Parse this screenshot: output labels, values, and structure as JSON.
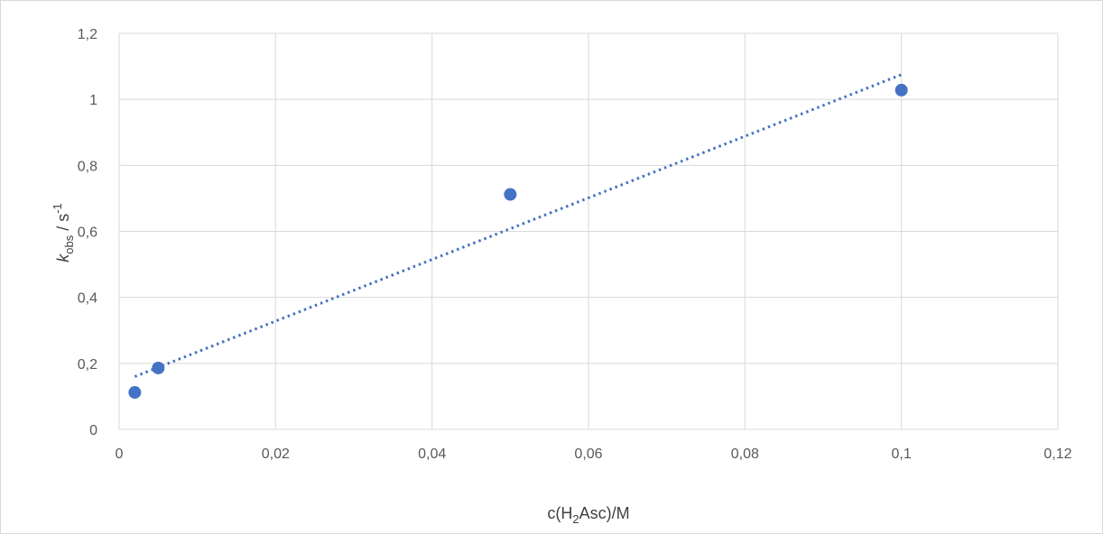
{
  "chart_data": {
    "type": "scatter",
    "x": [
      0.002,
      0.005,
      0.05,
      0.1
    ],
    "y": [
      0.112,
      0.186,
      0.712,
      1.028
    ],
    "trendline": {
      "type": "linear",
      "x": [
        0.002,
        0.1
      ],
      "y": [
        0.16,
        1.075
      ],
      "style": "dotted"
    },
    "xlim": [
      0,
      0.12
    ],
    "ylim": [
      0,
      1.2
    ],
    "x_ticks": [
      0,
      0.02,
      0.04,
      0.06,
      0.08,
      0.1,
      0.12
    ],
    "x_tick_labels": [
      "0",
      "0,02",
      "0,04",
      "0,06",
      "0,08",
      "0,1",
      "0,12"
    ],
    "y_ticks": [
      0,
      0.2,
      0.4,
      0.6,
      0.8,
      1,
      1.2
    ],
    "y_tick_labels": [
      "0",
      "0,2",
      "0,4",
      "0,6",
      "0,8",
      "1",
      "1,2"
    ],
    "xlabel": {
      "prefix": "c(H",
      "sub": "2",
      "suffix": "Asc)/M"
    },
    "ylabel": {
      "k": "k",
      "sub": "obs",
      "mid": " / s",
      "sup": "-1"
    },
    "grid": true,
    "legend": "none"
  },
  "colors": {
    "marker": "#4472C4",
    "trendline": "#4472C4",
    "grid": "#D9D9D9",
    "frame": "#D9D9D9",
    "text": "#595959"
  }
}
